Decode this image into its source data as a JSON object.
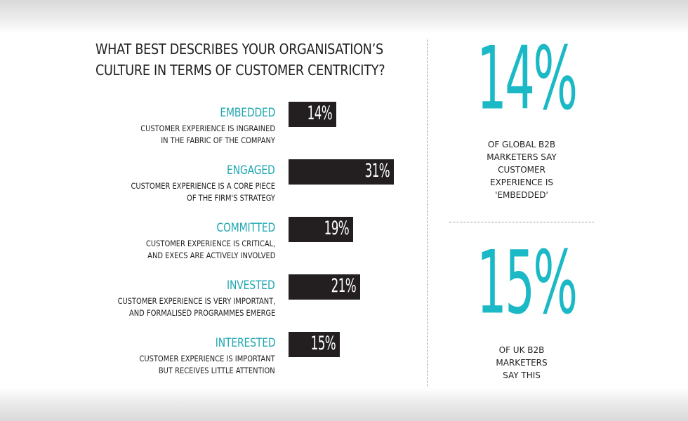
{
  "question": {
    "lines": [
      "WHAT BEST DESCRIBES YOUR ORGANISATION’S",
      "CULTURE IN TERMS OF CUSTOMER CENTRICITY?"
    ]
  },
  "chart_data": {
    "type": "bar",
    "orientation": "horizontal",
    "title": "WHAT BEST DESCRIBES YOUR ORGANISATION’S CULTURE IN TERMS OF CUSTOMER CENTRICITY?",
    "categories": [
      "EMBEDDED",
      "ENGAGED",
      "COMMITTED",
      "INVESTED",
      "INTERESTED"
    ],
    "descriptions": [
      [
        "CUSTOMER EXPERIENCE IS INGRAINED",
        "IN THE FABRIC OF THE COMPANY"
      ],
      [
        "CUSTOMER EXPERIENCE IS A CORE PIECE",
        "OF THE FIRM'S STRATEGY"
      ],
      [
        "CUSTOMER EXPERIENCE IS CRITICAL,",
        "AND EXECS ARE ACTIVELY INVOLVED"
      ],
      [
        "CUSTOMER EXPERIENCE IS VERY IMPORTANT,",
        "AND FORMALISED PROGRAMMES EMERGE"
      ],
      [
        "CUSTOMER EXPERIENCE IS IMPORTANT",
        "BUT RECEIVES LITTLE ATTENTION"
      ]
    ],
    "values": [
      14,
      31,
      19,
      21,
      15
    ],
    "labels": [
      "14%",
      "31%",
      "19%",
      "21%",
      "15%"
    ],
    "unit": "%",
    "xlim": [
      0,
      31
    ],
    "bar_color": "#231f20",
    "category_color": "#1fa7b0"
  },
  "stats": [
    {
      "value": "14%",
      "lines": [
        "OF GLOBAL B2B",
        "MARKETERS SAY",
        "CUSTOMER",
        "EXPERIENCE IS",
        "'EMBEDDED'"
      ]
    },
    {
      "value": "15%",
      "lines": [
        "OF UK B2B",
        "MARKETERS",
        "SAY THIS"
      ]
    }
  ],
  "colors": {
    "accent": "#1bb8c6",
    "bar": "#231f20",
    "text": "#222222"
  }
}
